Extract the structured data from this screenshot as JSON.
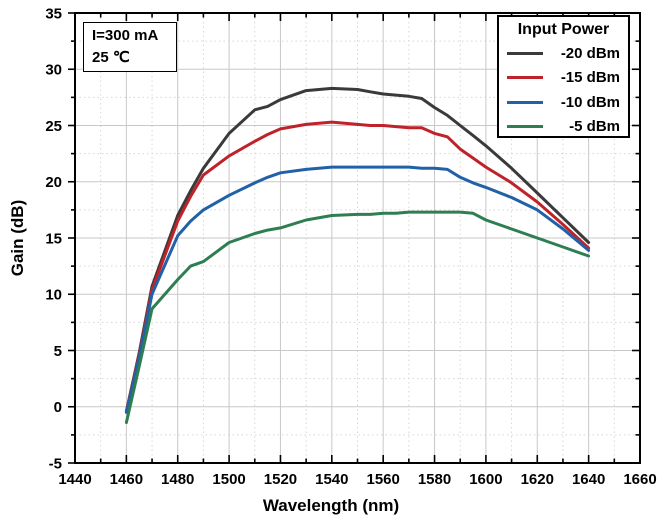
{
  "annotation_box": {
    "line1": "I=300 mA",
    "line2": "25 ℃"
  },
  "legend": {
    "title": "Input Power",
    "entries": [
      {
        "label": "-20 dBm",
        "color": "#3a3a3a"
      },
      {
        "label": "-15 dBm",
        "color": "#c0222a"
      },
      {
        "label": "-10 dBm",
        "color": "#2161a8"
      },
      {
        "label": "-5 dBm",
        "color": "#2e7e52"
      }
    ]
  },
  "colors": {
    "axis": "#000000",
    "text": "#000000",
    "grid_major": "#c8c8c8",
    "grid_minor": "#d6d6d6",
    "background": "#ffffff"
  },
  "chart_data": {
    "type": "line",
    "title": "",
    "xlabel": "Wavelength (nm)",
    "ylabel": "Gain (dB)",
    "xlim": [
      1440,
      1660
    ],
    "ylim": [
      -5,
      35
    ],
    "x_major_step": 20,
    "x_minor_step": 10,
    "y_major_step": 5,
    "y_minor_step": 2.5,
    "grid": "major-solid, minor-dotted",
    "legend_position": "top-right",
    "annotations": [
      "I=300 mA",
      "25 ℃"
    ],
    "x": [
      1460,
      1465,
      1470,
      1480,
      1485,
      1490,
      1500,
      1510,
      1515,
      1520,
      1530,
      1540,
      1550,
      1555,
      1560,
      1565,
      1570,
      1575,
      1580,
      1585,
      1590,
      1595,
      1600,
      1610,
      1620,
      1630,
      1640
    ],
    "series": [
      {
        "name": "-20 dBm",
        "color": "#3a3a3a",
        "values": [
          -0.4,
          4.8,
          10.7,
          17.0,
          19.2,
          21.2,
          24.3,
          26.4,
          26.7,
          27.3,
          28.1,
          28.3,
          28.2,
          28.0,
          27.8,
          27.7,
          27.6,
          27.4,
          26.6,
          25.9,
          25.0,
          24.1,
          23.2,
          21.2,
          19.0,
          16.8,
          14.6
        ]
      },
      {
        "name": "-15 dBm",
        "color": "#c0222a",
        "values": [
          -0.4,
          4.6,
          10.4,
          16.5,
          18.7,
          20.6,
          22.3,
          23.6,
          24.2,
          24.7,
          25.1,
          25.3,
          25.1,
          25.0,
          25.0,
          24.9,
          24.8,
          24.8,
          24.3,
          24.0,
          22.9,
          22.1,
          21.3,
          19.9,
          18.2,
          16.2,
          14.1
        ]
      },
      {
        "name": "-10 dBm",
        "color": "#2161a8",
        "values": [
          -0.5,
          4.4,
          10.0,
          15.2,
          16.5,
          17.5,
          18.8,
          19.9,
          20.4,
          20.8,
          21.1,
          21.3,
          21.3,
          21.3,
          21.3,
          21.3,
          21.3,
          21.2,
          21.2,
          21.1,
          20.4,
          19.9,
          19.5,
          18.6,
          17.5,
          15.8,
          13.9
        ]
      },
      {
        "name": "-5 dBm",
        "color": "#2e7e52",
        "values": [
          -1.4,
          3.6,
          8.7,
          11.3,
          12.5,
          12.9,
          14.6,
          15.4,
          15.7,
          15.9,
          16.6,
          17.0,
          17.1,
          17.1,
          17.2,
          17.2,
          17.3,
          17.3,
          17.3,
          17.3,
          17.3,
          17.2,
          16.6,
          15.8,
          15.0,
          14.2,
          13.4
        ]
      }
    ]
  }
}
